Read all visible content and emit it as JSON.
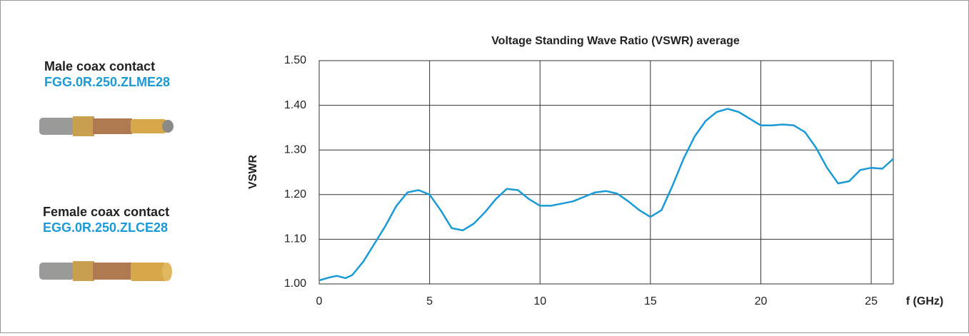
{
  "products": [
    {
      "label": "Male coax contact",
      "code": "FGG.0R.250.ZLME28"
    },
    {
      "label": "Female coax contact",
      "code": "EGG.0R.250.ZLCE28"
    }
  ],
  "chart_data": {
    "type": "line",
    "title": "Voltage Standing Wave Ratio (VSWR) average",
    "x_label": "f (GHz)",
    "y_label": "VSWR",
    "x": [
      0,
      0.5,
      0.8,
      1.2,
      1.5,
      2,
      2.5,
      3,
      3.5,
      4,
      4.5,
      5,
      5.5,
      6,
      6.5,
      7,
      7.5,
      8,
      8.5,
      9,
      9.5,
      10,
      10.5,
      11,
      11.5,
      12,
      12.5,
      13,
      13.5,
      14,
      14.5,
      15,
      15.5,
      16,
      16.5,
      17,
      17.5,
      18,
      18.5,
      19,
      19.5,
      20,
      20.5,
      21,
      21.5,
      22,
      22.5,
      23,
      23.5,
      24,
      24.5,
      25,
      25.5,
      26
    ],
    "series": [
      {
        "name": "VSWR",
        "color": "#1a9ad6",
        "values": [
          1.008,
          1.015,
          1.018,
          1.013,
          1.02,
          1.05,
          1.09,
          1.13,
          1.175,
          1.205,
          1.21,
          1.2,
          1.165,
          1.125,
          1.12,
          1.135,
          1.16,
          1.19,
          1.213,
          1.21,
          1.19,
          1.175,
          1.175,
          1.18,
          1.185,
          1.195,
          1.205,
          1.208,
          1.202,
          1.185,
          1.165,
          1.15,
          1.165,
          1.22,
          1.28,
          1.33,
          1.365,
          1.385,
          1.392,
          1.385,
          1.37,
          1.355,
          1.355,
          1.357,
          1.355,
          1.34,
          1.305,
          1.26,
          1.225,
          1.23,
          1.255,
          1.26,
          1.258,
          1.28
        ]
      }
    ],
    "xlim": [
      0,
      26
    ],
    "xticks": [
      0,
      5,
      10,
      15,
      20,
      25
    ],
    "ylim": [
      1.0,
      1.5
    ],
    "yticks": [
      {
        "value": 1.0,
        "label": "1.00"
      },
      {
        "value": 1.1,
        "label": "1.10"
      },
      {
        "value": 1.2,
        "label": "1.20"
      },
      {
        "value": 1.3,
        "label": "1.30"
      },
      {
        "value": 1.4,
        "label": "1.40"
      },
      {
        "value": 1.5,
        "label": "1.50"
      }
    ],
    "grid": true
  }
}
